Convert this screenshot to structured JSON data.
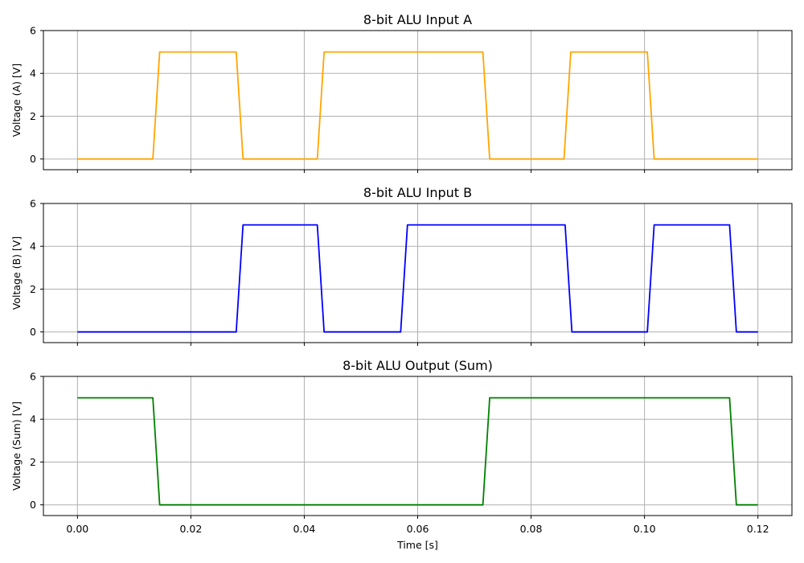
{
  "chart_data": [
    {
      "type": "line",
      "title": "8-bit ALU Input A",
      "ylabel": "Voltage (A) [V]",
      "xlabel": "",
      "xlim": [
        -0.006,
        0.126
      ],
      "ylim": [
        -0.5,
        6
      ],
      "yticks": [
        0,
        2,
        4,
        6
      ],
      "xticks": [
        0.0,
        0.02,
        0.04,
        0.06,
        0.08,
        0.1,
        0.12
      ],
      "xtick_labels": [],
      "grid": true,
      "color": "#ffa500",
      "series": [
        {
          "x": [
            0.0,
            0.0133,
            0.0145,
            0.028,
            0.0292,
            0.0423,
            0.0435,
            0.0715,
            0.0727,
            0.0858,
            0.087,
            0.1005,
            0.1017,
            0.12
          ],
          "y": [
            0,
            0,
            5,
            5,
            0,
            0,
            5,
            5,
            0,
            0,
            5,
            5,
            0,
            0
          ]
        }
      ]
    },
    {
      "type": "line",
      "title": "8-bit ALU Input B",
      "ylabel": "Voltage (B) [V]",
      "xlabel": "",
      "xlim": [
        -0.006,
        0.126
      ],
      "ylim": [
        -0.5,
        6
      ],
      "yticks": [
        0,
        2,
        4,
        6
      ],
      "xticks": [
        0.0,
        0.02,
        0.04,
        0.06,
        0.08,
        0.1,
        0.12
      ],
      "xtick_labels": [],
      "grid": true,
      "color": "#0000ff",
      "series": [
        {
          "x": [
            0.0,
            0.028,
            0.0292,
            0.0423,
            0.0435,
            0.057,
            0.0582,
            0.086,
            0.0872,
            0.1005,
            0.1017,
            0.115,
            0.1162,
            0.12
          ],
          "y": [
            0,
            0,
            5,
            5,
            0,
            0,
            5,
            5,
            0,
            0,
            5,
            5,
            0,
            0
          ]
        }
      ]
    },
    {
      "type": "line",
      "title": "8-bit ALU Output (Sum)",
      "ylabel": "Voltage (Sum) [V]",
      "xlabel": "Time [s]",
      "xlim": [
        -0.006,
        0.126
      ],
      "ylim": [
        -0.5,
        6
      ],
      "yticks": [
        0,
        2,
        4,
        6
      ],
      "xticks": [
        0.0,
        0.02,
        0.04,
        0.06,
        0.08,
        0.1,
        0.12
      ],
      "xtick_labels": [
        "0.00",
        "0.02",
        "0.04",
        "0.06",
        "0.08",
        "0.10",
        "0.12"
      ],
      "grid": true,
      "color": "#008000",
      "series": [
        {
          "x": [
            0.0,
            0.0133,
            0.0145,
            0.0715,
            0.0727,
            0.115,
            0.1162,
            0.12
          ],
          "y": [
            5,
            5,
            0,
            0,
            5,
            5,
            0,
            0
          ]
        }
      ]
    }
  ]
}
